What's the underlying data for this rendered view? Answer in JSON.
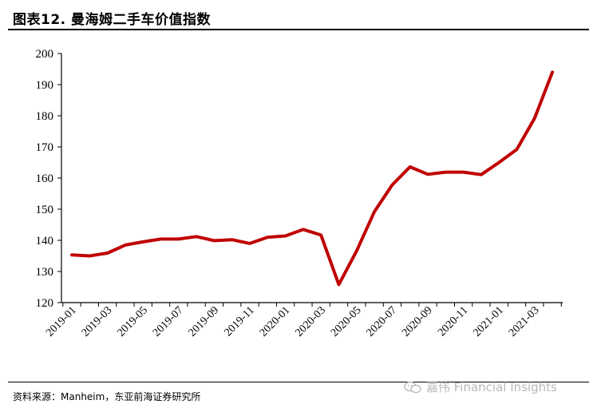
{
  "header": {
    "title": "图表12. 曼海姆二手车价值指数"
  },
  "footer": {
    "source": "资料来源：Manheim，东亚前海证券研究所",
    "watermark": "嘉伟 Financial Insights"
  },
  "chart_data": {
    "type": "line",
    "title": "图表12. 曼海姆二手车价值指数",
    "xlabel": "",
    "ylabel": "",
    "ylim": [
      120,
      200
    ],
    "yticks": [
      120,
      130,
      140,
      150,
      160,
      170,
      180,
      190,
      200
    ],
    "xtick_labels": [
      "2019-01",
      "2019-03",
      "2019-05",
      "2019-07",
      "2019-09",
      "2019-11",
      "2020-01",
      "2020-03",
      "2020-05",
      "2020-07",
      "2020-09",
      "2020-11",
      "2021-01",
      "2021-03"
    ],
    "line_color": "#c00000",
    "grid": false,
    "x": [
      "2019-01",
      "2019-02",
      "2019-03",
      "2019-04",
      "2019-05",
      "2019-06",
      "2019-07",
      "2019-08",
      "2019-09",
      "2019-10",
      "2019-11",
      "2019-12",
      "2020-01",
      "2020-02",
      "2020-03",
      "2020-04",
      "2020-05",
      "2020-06",
      "2020-07",
      "2020-08",
      "2020-09",
      "2020-10",
      "2020-11",
      "2020-12",
      "2021-01",
      "2021-02",
      "2021-03",
      "2021-04"
    ],
    "values": [
      135.3,
      135.0,
      135.9,
      138.5,
      139.5,
      140.4,
      140.4,
      141.2,
      139.9,
      140.2,
      139.0,
      141.0,
      141.4,
      143.5,
      141.7,
      125.8,
      136.6,
      149.2,
      157.8,
      163.6,
      161.2,
      161.9,
      161.9,
      161.1,
      165.0,
      169.2,
      179.2,
      194.0
    ]
  }
}
